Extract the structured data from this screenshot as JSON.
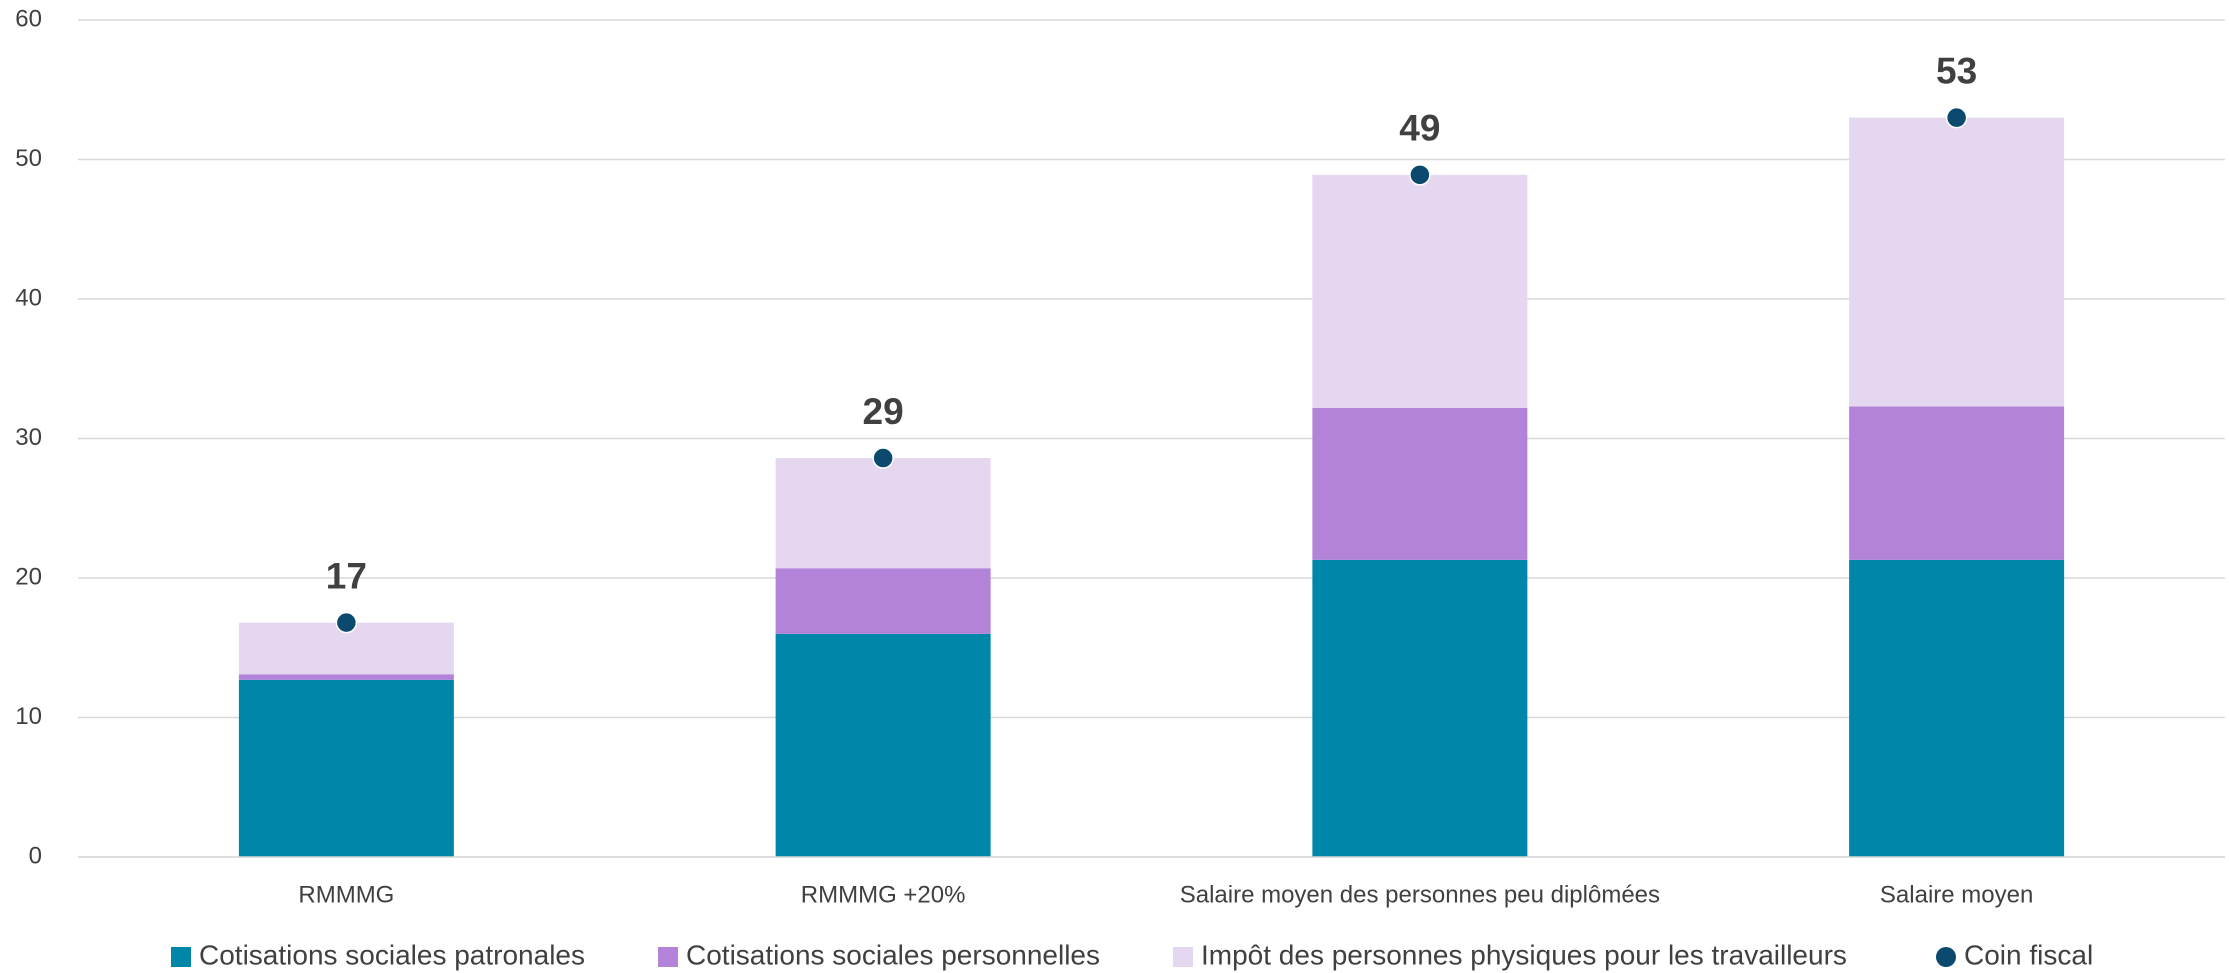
{
  "chart_data": {
    "type": "bar",
    "stacked": true,
    "categories": [
      "RMMMG",
      "RMMMG +20%",
      "Salaire moyen des personnes peu diplômées",
      "Salaire moyen"
    ],
    "series": [
      {
        "name": "Cotisations sociales patronales",
        "color": "#0086a8",
        "values": [
          12.7,
          16.0,
          21.3,
          21.3
        ]
      },
      {
        "name": "Cotisations sociales personnelles",
        "color": "#b383d9",
        "values": [
          0.4,
          4.7,
          10.9,
          11.0
        ]
      },
      {
        "name": "Impôt des personnes physiques pour les travailleurs",
        "color": "#e6d7f0",
        "values": [
          3.7,
          7.9,
          16.7,
          20.7
        ]
      },
      {
        "name": "Coin fiscal",
        "color": "#0b4a6e",
        "type": "scatter",
        "values": [
          16.8,
          28.6,
          48.9,
          53.0
        ],
        "value_labels": [
          "17",
          "29",
          "49",
          "53"
        ]
      }
    ],
    "ylim": [
      0,
      60
    ],
    "yticks": [
      0,
      10,
      20,
      30,
      40,
      50,
      60
    ],
    "grid": true,
    "legend": "bottom"
  }
}
